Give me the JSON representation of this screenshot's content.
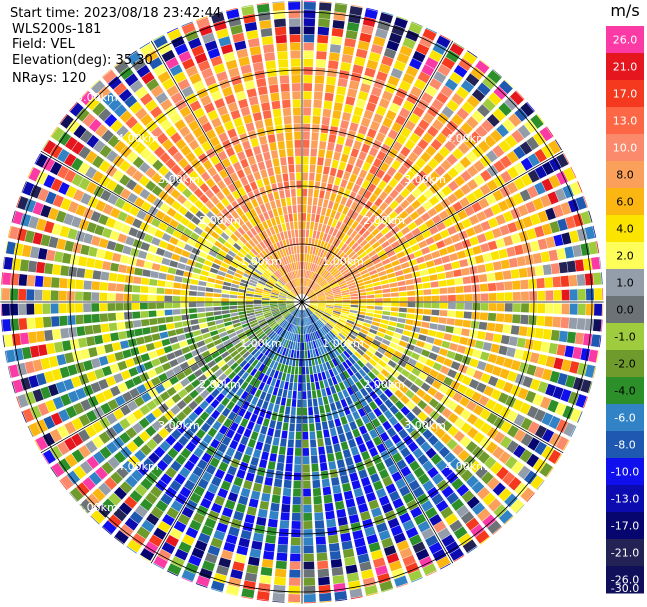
{
  "header": {
    "start_time": "Start time: 2023/08/18 23:42:44",
    "instrument": "WLS200s-181",
    "field": "Field: VEL",
    "elevation": "Elevation(deg): 35.30",
    "nrays": "NRays: 120"
  },
  "chart_data": {
    "type": "heatmap",
    "projection": "polar-ppi",
    "field": "VEL",
    "units": "m/s",
    "nrays": 120,
    "elevation_deg": 35.3,
    "range_max_km": 5.2,
    "range_rings_km": [
      1,
      2,
      3,
      4,
      5
    ],
    "range_labels": [
      "1.00km",
      "2.00km",
      "3.00km",
      "4.00km",
      "5.00km"
    ],
    "colorbar": {
      "label": "m/s",
      "ticks": [
        "26.0",
        "21.0",
        "17.0",
        "13.0",
        "10.0",
        "8.0",
        "6.0",
        "4.0",
        "2.0",
        "1.0",
        "0.0",
        "-1.0",
        "-2.0",
        "-4.0",
        "-6.0",
        "-8.0",
        "-10.0",
        "-13.0",
        "-17.0",
        "-21.0",
        "-26.0",
        "-30.0"
      ],
      "colors": [
        "#fb3aa6",
        "#e6161f",
        "#f5391e",
        "#fd6745",
        "#fb8a6c",
        "#fba05a",
        "#fbb612",
        "#fbe500",
        "#fdfe5a",
        "#949eaa",
        "#6c7377",
        "#9fcc3f",
        "#6f9a2c",
        "#2d8f2a",
        "#3283c6",
        "#1e58b0",
        "#1010ee",
        "#0b0bb0",
        "#06066e",
        "#222255",
        "#10105a"
      ]
    },
    "regions": [
      {
        "azimuth_deg": [
          315,
          45
        ],
        "range_km": [
          0.3,
          2.0
        ],
        "velocity_ms": 7
      },
      {
        "azimuth_deg": [
          45,
          90
        ],
        "range_km": [
          0.3,
          2.0
        ],
        "velocity_ms": 6
      },
      {
        "azimuth_deg": [
          270,
          315
        ],
        "range_km": [
          0.3,
          2.0
        ],
        "velocity_ms": 2
      },
      {
        "azimuth_deg": [
          90,
          135
        ],
        "range_km": [
          0.3,
          2.0
        ],
        "velocity_ms": 2
      },
      {
        "azimuth_deg": [
          135,
          225
        ],
        "range_km": [
          0.3,
          2.0
        ],
        "velocity_ms": -8
      },
      {
        "azimuth_deg": [
          225,
          270
        ],
        "range_km": [
          0.3,
          2.0
        ],
        "velocity_ms": -2
      }
    ],
    "noise_beyond_km": 4.4
  }
}
